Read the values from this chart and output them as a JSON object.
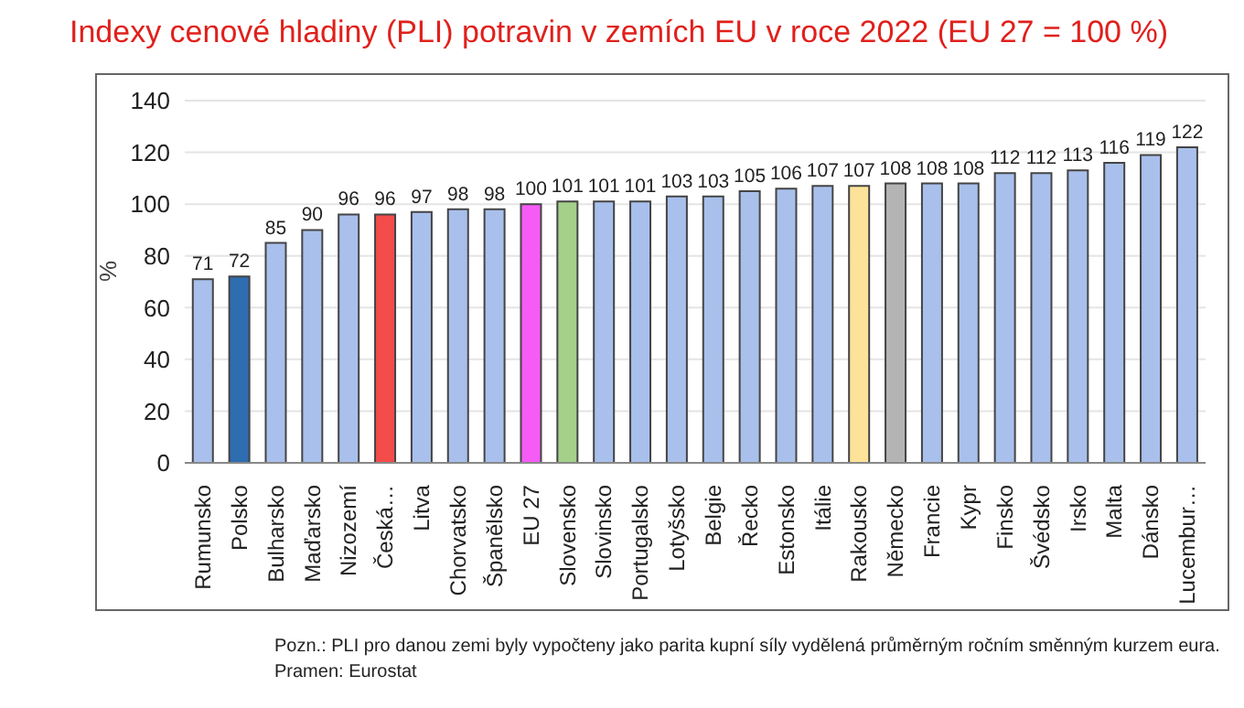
{
  "chart_data": {
    "type": "bar",
    "title": "Indexy cenové hladiny (PLI) potravin v zemích EU v roce 2022 (EU 27 = 100 %)",
    "ylabel": "%",
    "categories": [
      "Rumunsko",
      "Polsko",
      "Bulharsko",
      "Maďarsko",
      "Nizozemí",
      "Česká…",
      "Litva",
      "Chorvatsko",
      "Španělsko",
      "EU 27",
      "Slovensko",
      "Slovinsko",
      "Portugalsko",
      "Lotyšsko",
      "Belgie",
      "Řecko",
      "Estonsko",
      "Itálie",
      "Rakousko",
      "Německo",
      "Francie",
      "Kypr",
      "Finsko",
      "Švédsko",
      "Irsko",
      "Malta",
      "Dánsko",
      "Lucembur…"
    ],
    "values": [
      71,
      72,
      85,
      90,
      96,
      96,
      97,
      98,
      98,
      100,
      101,
      101,
      101,
      103,
      103,
      105,
      106,
      107,
      107,
      108,
      108,
      108,
      112,
      112,
      113,
      116,
      119,
      122
    ],
    "colors": [
      "#a9c0ec",
      "#2e6db0",
      "#a9c0ec",
      "#a9c0ec",
      "#a9c0ec",
      "#f44b4b",
      "#a9c0ec",
      "#a9c0ec",
      "#a9c0ec",
      "#f55cf5",
      "#a4d08a",
      "#a9c0ec",
      "#a9c0ec",
      "#a9c0ec",
      "#a9c0ec",
      "#a9c0ec",
      "#a9c0ec",
      "#a9c0ec",
      "#fde39a",
      "#b4b4b4",
      "#a9c0ec",
      "#a9c0ec",
      "#a9c0ec",
      "#a9c0ec",
      "#a9c0ec",
      "#a9c0ec",
      "#a9c0ec",
      "#a9c0ec"
    ],
    "ylim": [
      0,
      140
    ],
    "yticks": [
      0,
      20,
      40,
      60,
      80,
      100,
      120,
      140
    ],
    "grid": "y",
    "data_labels": true,
    "annotations": [
      "Pozn.: PLI pro danou zemi byly vypočteny jako parita kupní síly vydělená průměrným ročním směnným kurzem eura.",
      "Pramen: Eurostat"
    ]
  }
}
